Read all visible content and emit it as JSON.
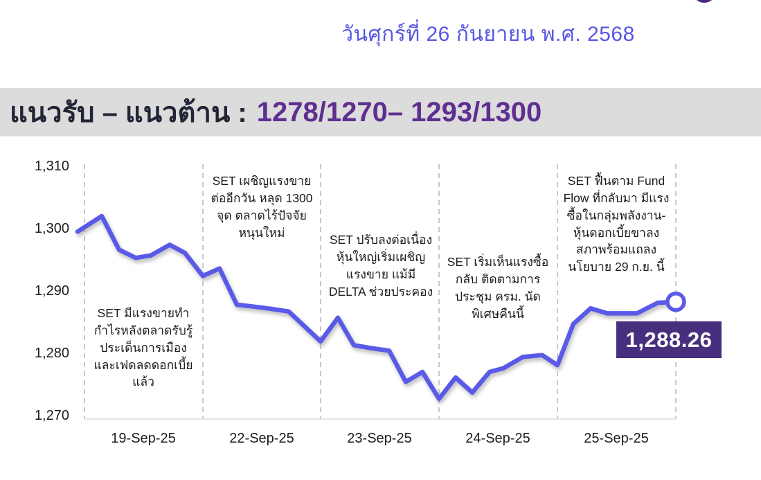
{
  "header": {
    "date_text": "วันศุกร์ที่ 26 กันยายน พ.ศ. 2568",
    "date_color": "#5756e3",
    "logo_color": "#4b2b7f"
  },
  "banner": {
    "label": "แนวรับ – แนวต้าน :",
    "value": "1278/1270– 1293/1300",
    "bg": "#dcdcdc",
    "label_color": "#222536",
    "value_color": "#5e2f91"
  },
  "chart_data": {
    "type": "line",
    "title": "",
    "xlabel": "",
    "ylabel": "",
    "ylim": [
      1270,
      1310
    ],
    "y_tick_labels": [
      "1,310",
      "1,300",
      "1,290",
      "1,280",
      "1,270"
    ],
    "x_tick_labels": [
      "19-Sep-25",
      "22-Sep-25",
      "23-Sep-25",
      "24-Sep-25",
      "25-Sep-25"
    ],
    "grid": "dashed-vertical-section-dividers",
    "line_color": "#5a5ae8",
    "grid_color": "#bbbbbb",
    "marker": "open-circle-at-last-point",
    "last_value": 1288.26,
    "last_value_label": "1,288.26",
    "points": [
      {
        "x": 112,
        "v": 1299.5
      },
      {
        "x": 147,
        "v": 1302.0
      },
      {
        "x": 172,
        "v": 1296.6
      },
      {
        "x": 196,
        "v": 1295.3
      },
      {
        "x": 218,
        "v": 1295.7
      },
      {
        "x": 245,
        "v": 1297.4
      },
      {
        "x": 267,
        "v": 1296.1
      },
      {
        "x": 293,
        "v": 1292.4
      },
      {
        "x": 317,
        "v": 1293.6
      },
      {
        "x": 342,
        "v": 1287.8
      },
      {
        "x": 380,
        "v": 1287.3
      },
      {
        "x": 417,
        "v": 1286.7
      },
      {
        "x": 463,
        "v": 1281.9
      },
      {
        "x": 488,
        "v": 1285.7
      },
      {
        "x": 511,
        "v": 1281.3
      },
      {
        "x": 537,
        "v": 1280.8
      },
      {
        "x": 562,
        "v": 1280.4
      },
      {
        "x": 586,
        "v": 1275.4
      },
      {
        "x": 610,
        "v": 1277.0
      },
      {
        "x": 634,
        "v": 1272.7
      },
      {
        "x": 658,
        "v": 1276.1
      },
      {
        "x": 682,
        "v": 1273.7
      },
      {
        "x": 707,
        "v": 1277.0
      },
      {
        "x": 727,
        "v": 1277.6
      },
      {
        "x": 755,
        "v": 1279.4
      },
      {
        "x": 783,
        "v": 1279.7
      },
      {
        "x": 805,
        "v": 1278.1
      },
      {
        "x": 828,
        "v": 1284.7
      },
      {
        "x": 853,
        "v": 1287.2
      },
      {
        "x": 877,
        "v": 1286.4
      },
      {
        "x": 920,
        "v": 1286.4
      },
      {
        "x": 950,
        "v": 1288.1
      },
      {
        "x": 976,
        "v": 1288.26
      }
    ],
    "annotations": [
      {
        "text": "SET มีแรงขายทำ\nกำไรหลังตลาดรับรู้\nประเด็นการเมือง\nและเฟดลดดอกเบี้ย\nแล้ว"
      },
      {
        "text": "SET เผชิญแรงขาย\nต่ออีกวัน หลุด 1300\nจุด ตลาดไร้ปัจจัย\nหนุนใหม่"
      },
      {
        "text": "SET ปรับลงต่อเนื่อง\nหุ้นใหญ่เริ่มเผชิญ\nแรงขาย แม้มี\nDELTA ช่วยประคอง"
      },
      {
        "text": "SET เริ่มเห็นแรงซื้อ\nกลับ ติดตามการ\nประชุม ครม. นัด\nพิเศษคืนนี้"
      },
      {
        "text": "SET ฟื้นตาม Fund\nFlow ที่กลับมา มีแรง\nซื้อในกลุ่มพลังงาน-\nหุ้นดอกเบี้ยขาลง\nสภาพร้อมแถลง\nนโยบาย 29 ก.ย. นี้"
      }
    ]
  }
}
